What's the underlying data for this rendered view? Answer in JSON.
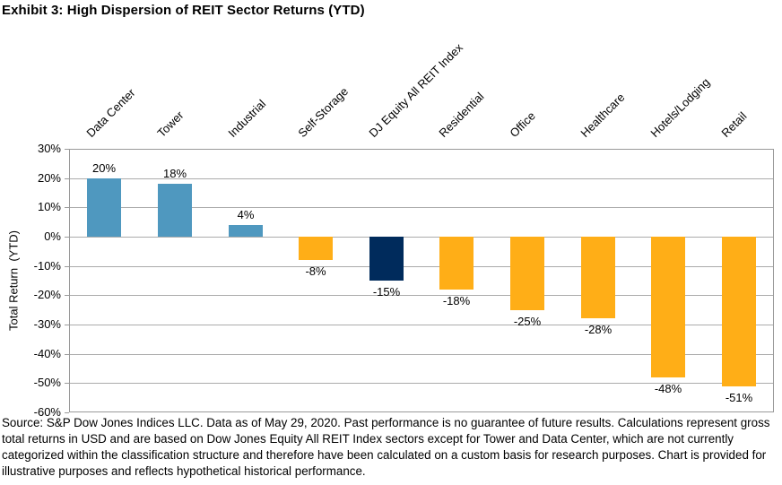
{
  "page": {
    "title": "Exhibit 3: High Dispersion of REIT Sector Returns (YTD)"
  },
  "chart_data": {
    "type": "bar",
    "title": "Exhibit 3: High Dispersion of REIT Sector Returns (YTD)",
    "categories": [
      "Data Center",
      "Tower",
      "Industrial",
      "Self-Storage",
      "DJ Equity All REIT Index",
      "Residential",
      "Office",
      "Healthcare",
      "Hotels/Lodging",
      "Retail"
    ],
    "values": [
      20,
      18,
      4,
      -8,
      -15,
      -18,
      -25,
      -28,
      -48,
      -51
    ],
    "value_labels": [
      "20%",
      "18%",
      "4%",
      "-8%",
      "-15%",
      "-18%",
      "-25%",
      "-28%",
      "-48%",
      "-51%"
    ],
    "bar_colors": [
      "#4F98BF",
      "#4F98BF",
      "#4F98BF",
      "#FFAE17",
      "#002B5C",
      "#FFAE17",
      "#FFAE17",
      "#FFAE17",
      "#FFAE17",
      "#FFAE17"
    ],
    "xlabel": "",
    "ylabel": "Total Return  (YTD)",
    "ylim": [
      -60,
      30
    ],
    "ytick_step": 10,
    "ytick_labels": [
      "30%",
      "20%",
      "10%",
      "0%",
      "-10%",
      "-20%",
      "-30%",
      "-40%",
      "-50%",
      "-60%"
    ],
    "grid": true,
    "legend_position": "none",
    "category_label_rotation_deg": 45,
    "colors": {
      "positive_bar": "#4F98BF",
      "index_bar": "#002B5C",
      "negative_bar": "#FFAE17",
      "gridline": "#ABABAB",
      "axis_border": "#9A9A9A",
      "text": "#000000"
    }
  },
  "footer": {
    "source_text": "Source: S&P Dow Jones Indices LLC. Data as of May 29, 2020. Past performance is no guarantee of future results. Calculations represent gross total returns in USD and are based on Dow Jones Equity All REIT Index sectors except for Tower and Data Center, which are not currently categorized within the classification structure and therefore have been calculated on a custom basis for research purposes. Chart is provided for illustrative purposes and reflects hypothetical historical performance."
  }
}
